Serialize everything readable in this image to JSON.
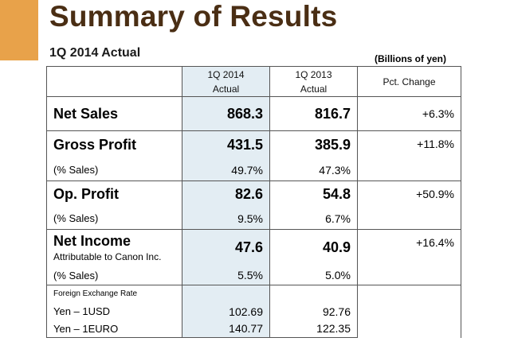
{
  "title": "Summary of Results",
  "subtitle": "1Q 2014 Actual",
  "units": "(Billions of yen)",
  "columns": {
    "col1_line1": "1Q 2014",
    "col1_line2": "Actual",
    "col2_line1": "1Q 2013",
    "col2_line2": "Actual",
    "change": "Pct.  Change"
  },
  "rows": {
    "net_sales": {
      "label": "Net Sales",
      "v2014": "868.3",
      "v2013": "816.7",
      "change": "+6.3%"
    },
    "gross_profit": {
      "label": "Gross Profit",
      "v2014": "431.5",
      "v2013": "385.9",
      "change": "+11.8%",
      "pct_label": "(% Sales)",
      "pct2014": "49.7%",
      "pct2013": "47.3%"
    },
    "op_profit": {
      "label": "Op. Profit",
      "v2014": "82.6",
      "v2013": "54.8",
      "change": "+50.9%",
      "pct_label": "(% Sales)",
      "pct2014": "9.5%",
      "pct2013": "6.7%"
    },
    "net_income": {
      "label": "Net Income",
      "sublabel": "Attributable to Canon Inc.",
      "v2014": "47.6",
      "v2013": "40.9",
      "change": "+16.4%",
      "pct_label": "(% Sales)",
      "pct2014": "5.5%",
      "pct2013": "5.0%"
    },
    "fx": {
      "label": "Foreign Exchange Rate",
      "usd_label": "Yen – 1USD",
      "usd2014": "102.69",
      "usd2013": "92.76",
      "euro_label": "Yen – 1EURO",
      "euro2014": "140.77",
      "euro2013": "122.35"
    }
  }
}
